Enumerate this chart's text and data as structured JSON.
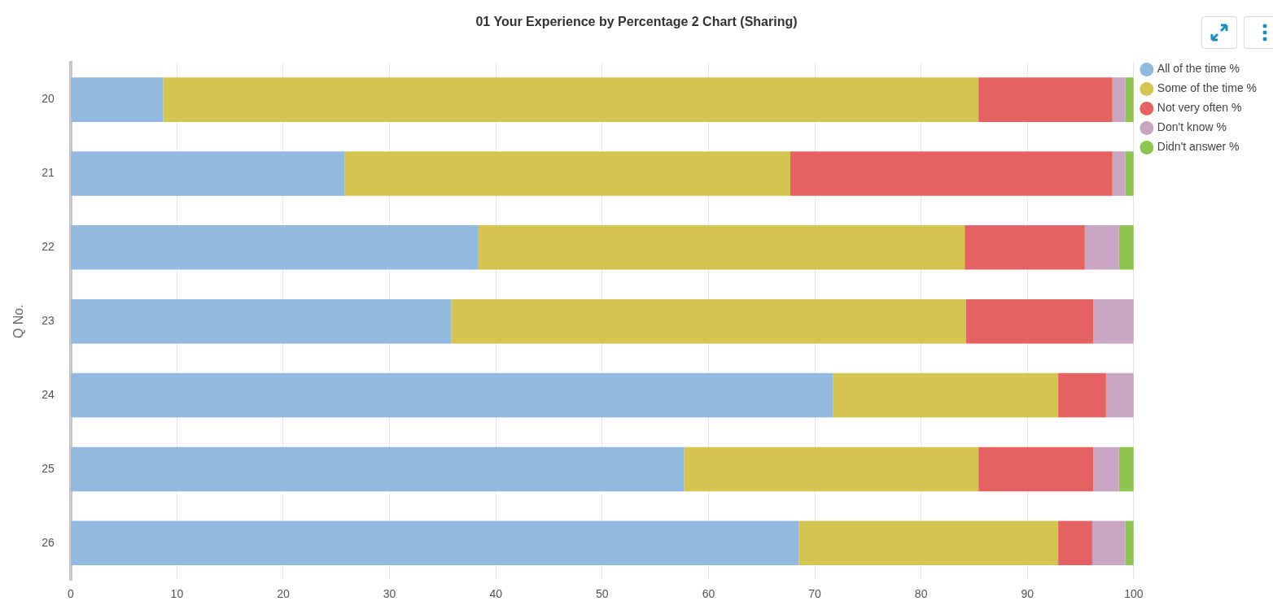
{
  "chart_data": {
    "type": "bar",
    "orientation": "horizontal",
    "stacked": true,
    "title": "01 Your Experience by Percentage 2 Chart (Sharing)",
    "ylabel": "Q No.",
    "categories": [
      "20",
      "21",
      "22",
      "23",
      "24",
      "25",
      "26"
    ],
    "series": [
      {
        "name": "All of the time %",
        "color": "#94b9e0",
        "values": [
          8.7,
          25.8,
          38.3,
          35.8,
          71.7,
          57.7,
          68.5
        ]
      },
      {
        "name": "Some of the time %",
        "color": "#d4c550",
        "values": [
          76.7,
          41.9,
          45.8,
          48.4,
          21.2,
          27.7,
          24.4
        ]
      },
      {
        "name": "Not very often %",
        "color": "#e46362",
        "values": [
          12.6,
          30.3,
          11.3,
          12.0,
          4.5,
          10.8,
          3.2
        ]
      },
      {
        "name": "Don't know %",
        "color": "#c8a5c0",
        "values": [
          1.2,
          1.2,
          3.2,
          3.8,
          2.6,
          2.4,
          3.1
        ]
      },
      {
        "name": "Didn't answer %",
        "color": "#8fc450",
        "values": [
          0.8,
          0.8,
          1.4,
          0,
          0,
          1.4,
          0.8
        ]
      }
    ],
    "xlim": [
      0,
      100
    ],
    "xticks": [
      0,
      10,
      20,
      30,
      40,
      50,
      60,
      70,
      80,
      90,
      100
    ],
    "grid": "x",
    "legend": "top right"
  }
}
